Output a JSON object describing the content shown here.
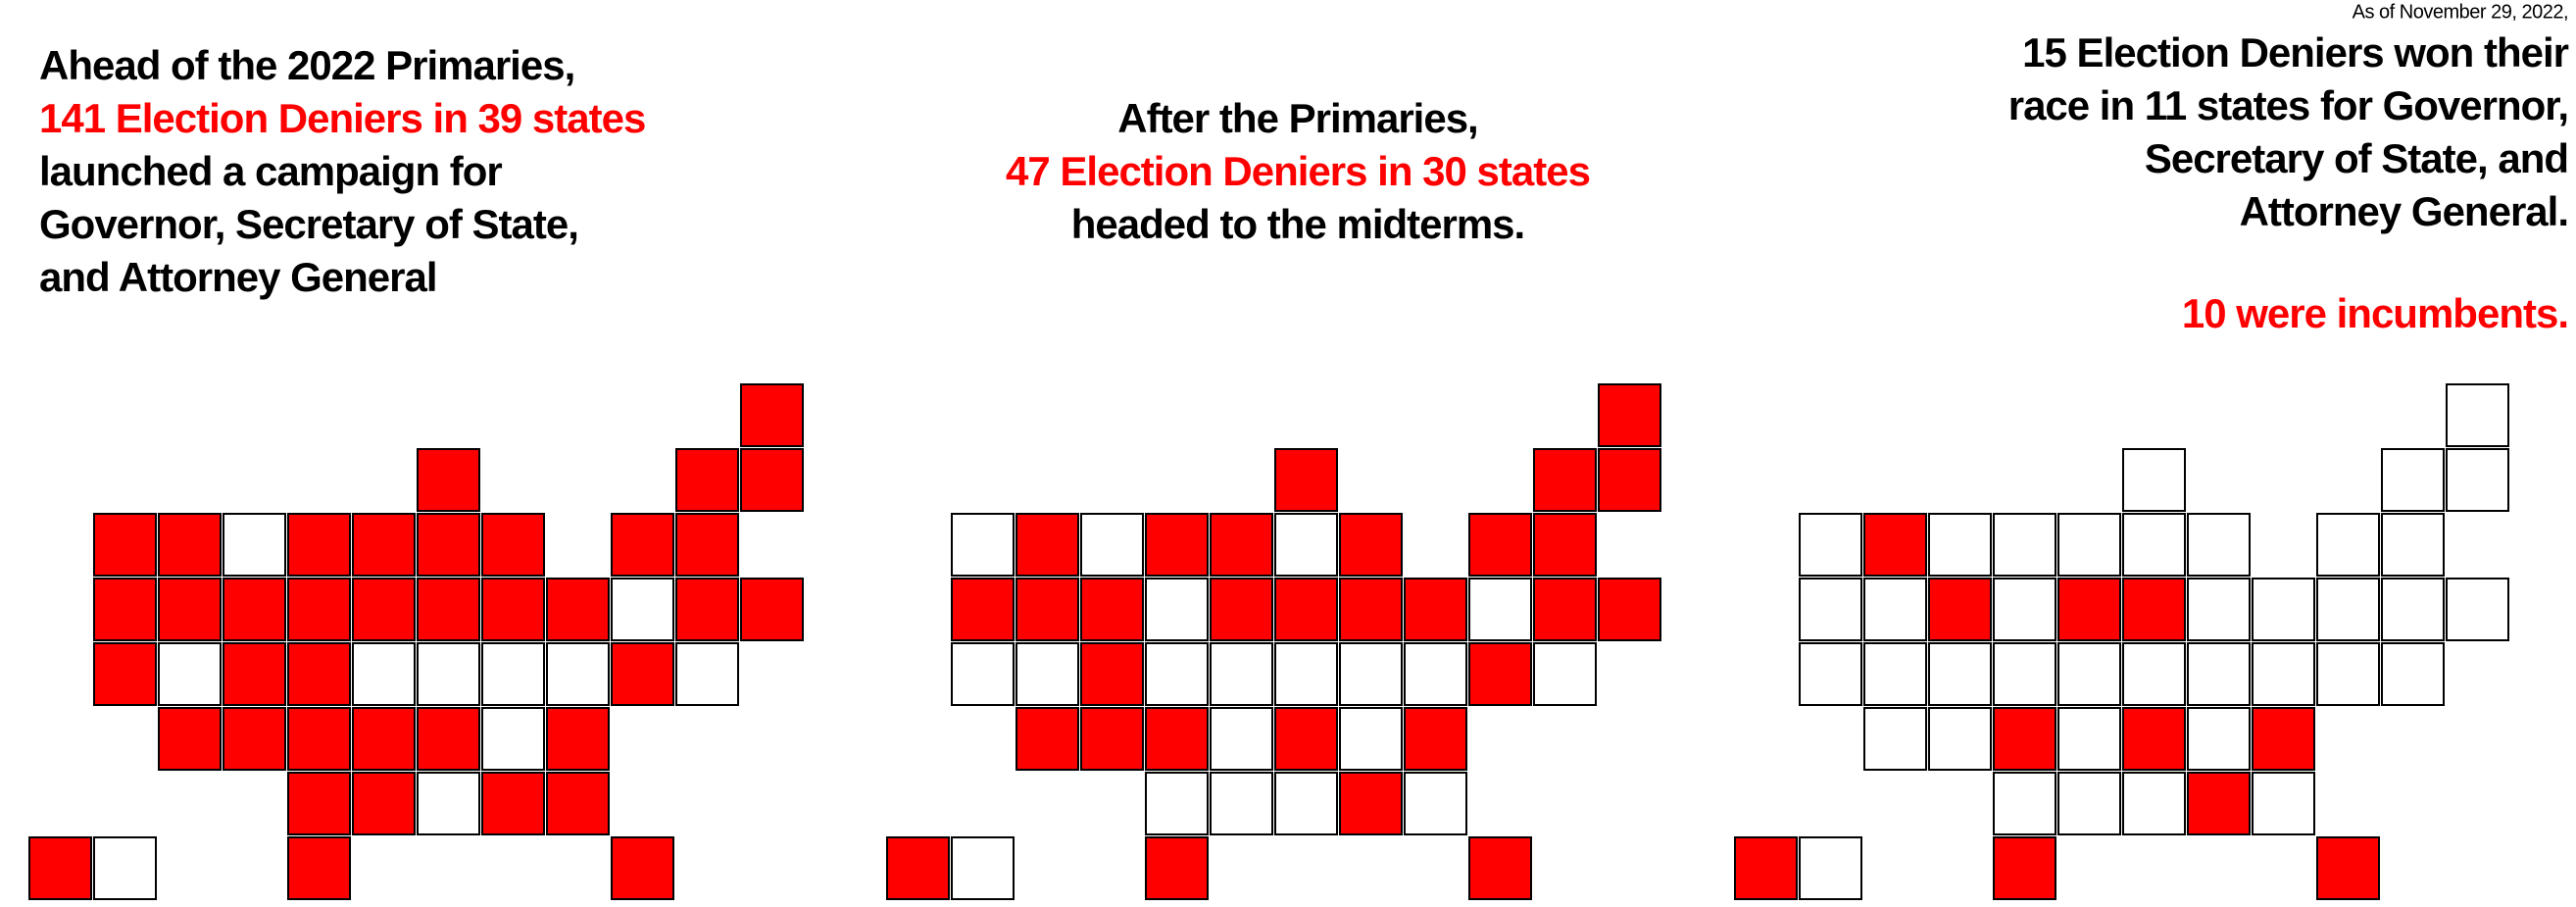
{
  "note": "As of November 29, 2022,",
  "panels": [
    {
      "lines": [
        {
          "text": "Ahead of the 2022 Primaries,",
          "color": "#000000"
        },
        {
          "text": "141 Election Deniers in 39 states",
          "color": "#ff0000"
        },
        {
          "text": "launched a campaign for",
          "color": "#000000"
        },
        {
          "text": "Governor, Secretary of State,",
          "color": "#000000"
        },
        {
          "text": "and Attorney General",
          "color": "#000000"
        }
      ]
    },
    {
      "lines": [
        {
          "text": "After the Primaries,",
          "color": "#000000"
        },
        {
          "text": "47 Election Deniers in 30 states",
          "color": "#ff0000"
        },
        {
          "text": "headed to the midterms.",
          "color": "#000000"
        }
      ]
    },
    {
      "lines": [
        {
          "text": "15 Election Deniers won their",
          "color": "#000000"
        },
        {
          "text": "race in 11 states for Governor,",
          "color": "#000000"
        },
        {
          "text": "Secretary of State, and",
          "color": "#000000"
        },
        {
          "text": "Attorney General.",
          "color": "#000000"
        }
      ],
      "footer": {
        "text": "10 were incumbents.",
        "color": "#ff0000"
      }
    }
  ]
}
